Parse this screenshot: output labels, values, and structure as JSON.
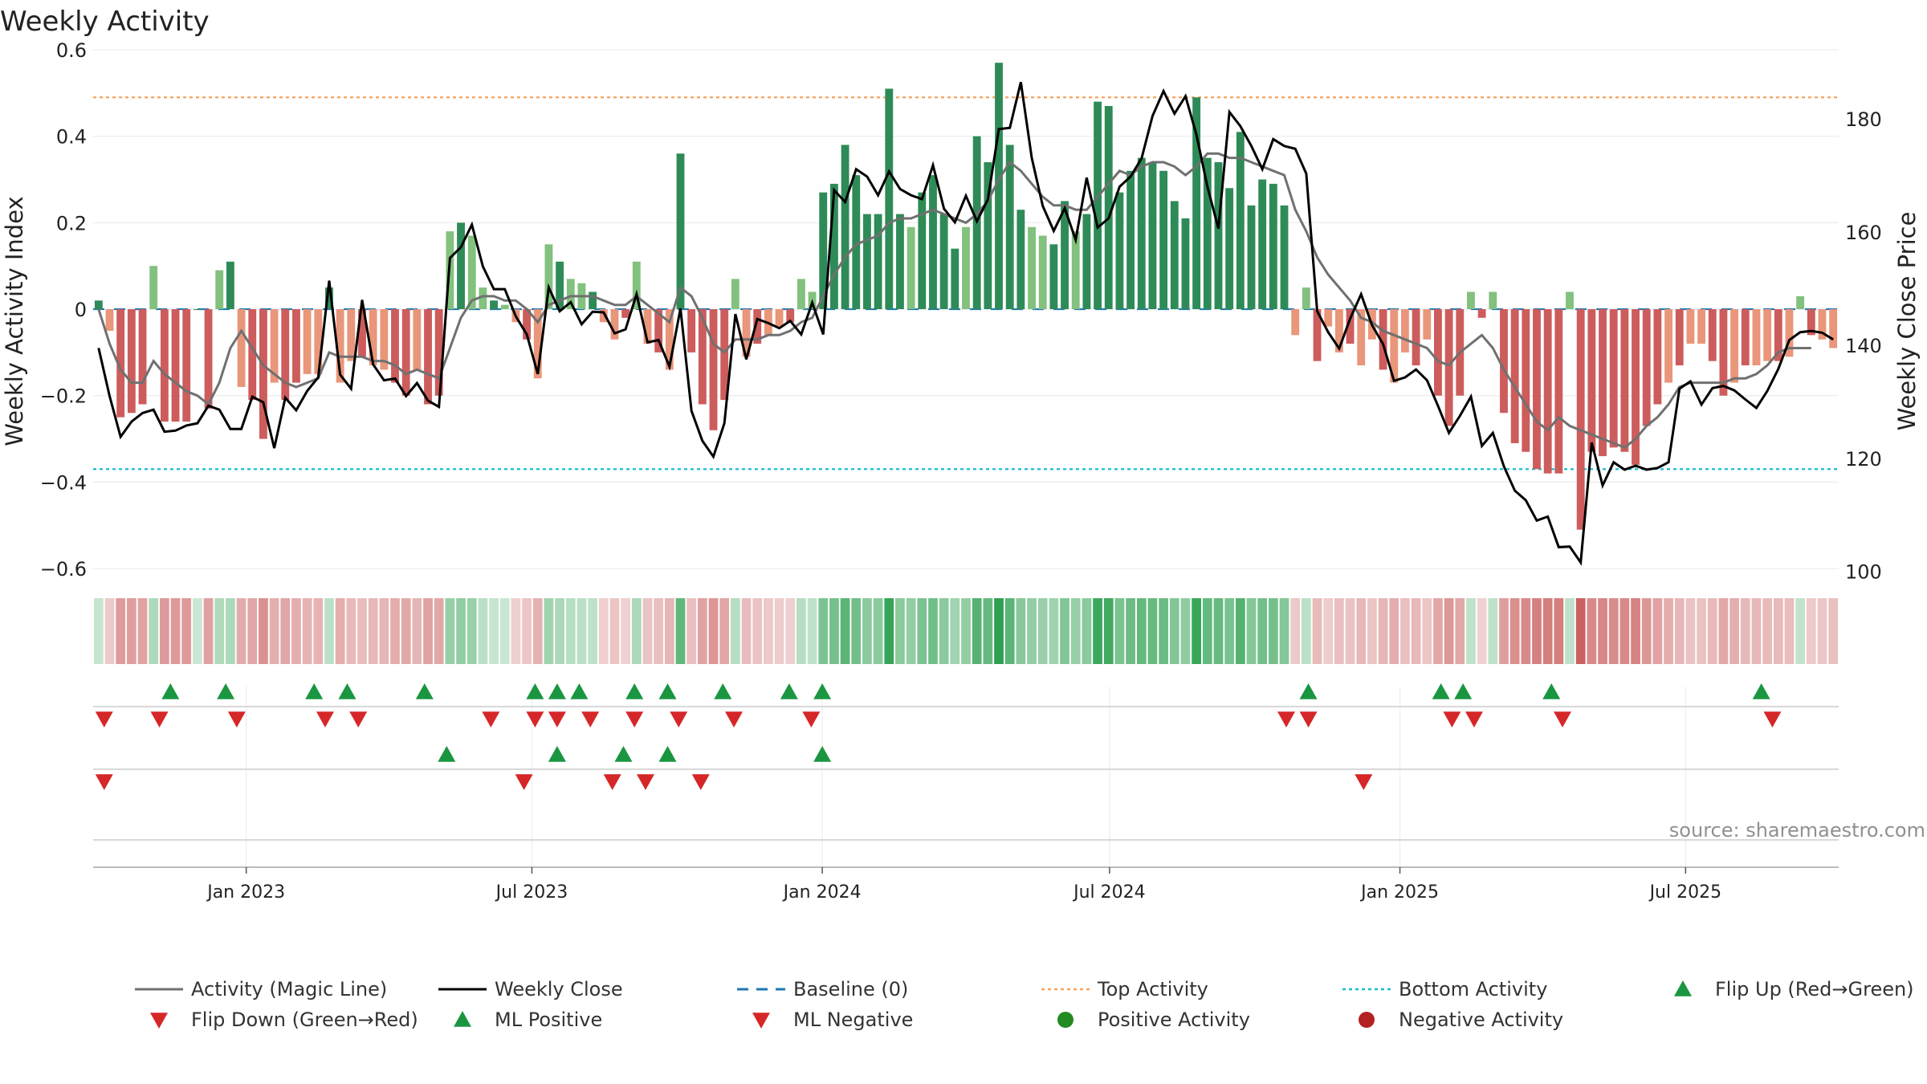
{
  "chart_data": {
    "type": "bar",
    "title": "Weekly Activity",
    "ylabel": "Weekly Activity Index",
    "y2label": "Weekly Close Price",
    "ylim": [
      -0.65,
      0.6
    ],
    "y2lim": [
      96.7,
      192.2
    ],
    "yticks": [
      0.6,
      0.4,
      0.2,
      0,
      -0.2,
      -0.4,
      -0.6
    ],
    "ytick_labels": [
      "0.6",
      "0.4",
      "0.2",
      "0",
      "−0.2",
      "−0.4",
      "−0.6"
    ],
    "y2ticks": [
      180,
      160,
      140,
      120,
      100
    ],
    "y2tick_labels": [
      "180",
      "160",
      "140",
      "120",
      "100"
    ],
    "x_start": "2022-09-26",
    "x_end": "2025-10-06",
    "xticks": [
      "2023-01-01",
      "2023-07-01",
      "2024-01-01",
      "2024-07-01",
      "2025-01-01",
      "2025-07-01"
    ],
    "xtick_labels": [
      "Jan 2023",
      "Jul 2023",
      "Jan 2024",
      "Jul 2024",
      "Jan 2025",
      "Jul 2025"
    ],
    "top_activity": 0.49,
    "bottom_activity": -0.37,
    "baseline": 0,
    "source": "source: sharemaestro.com",
    "colors": {
      "strong_pos": "#2e8b57",
      "light_pos": "#82c17e",
      "strong_neg": "#cd5c5c",
      "light_neg": "#e9967a",
      "close": "#000000",
      "magic": "#707070",
      "baseline": "#1f77b4",
      "top": "#f4a460",
      "bottom": "#17becf",
      "up_marker": "#1a9641",
      "down_marker": "#d62728",
      "pos_dot": "#228b22",
      "neg_dot": "#b22222"
    },
    "series": [
      {
        "name": "Weekly Activity Index",
        "values": [
          0.02,
          -0.05,
          -0.25,
          -0.24,
          -0.22,
          0.1,
          -0.26,
          -0.26,
          -0.26,
          0,
          -0.23,
          0.09,
          0.11,
          -0.18,
          -0.21,
          -0.3,
          -0.17,
          -0.21,
          -0.17,
          -0.15,
          -0.15,
          0.05,
          -0.17,
          -0.12,
          -0.11,
          -0.13,
          -0.14,
          -0.17,
          -0.2,
          -0.14,
          -0.22,
          -0.2,
          0.18,
          0.2,
          0.17,
          0.05,
          0.02,
          0.01,
          -0.03,
          -0.07,
          -0.16,
          0.15,
          0.11,
          0.07,
          0.06,
          0.04,
          -0.03,
          -0.07,
          -0.02,
          0.11,
          -0.08,
          -0.1,
          -0.14,
          0.36,
          -0.1,
          -0.22,
          -0.28,
          -0.21,
          0.07,
          -0.11,
          -0.08,
          -0.06,
          -0.04,
          -0.03,
          0.07,
          0.04,
          0.27,
          0.29,
          0.38,
          0.31,
          0.22,
          0.22,
          0.51,
          0.22,
          0.19,
          0.27,
          0.31,
          0.22,
          0.14,
          0.19,
          0.4,
          0.34,
          0.57,
          0.38,
          0.23,
          0.19,
          0.17,
          0.15,
          0.25,
          0.18,
          0.22,
          0.48,
          0.47,
          0.27,
          0.32,
          0.35,
          0.34,
          0.32,
          0.25,
          0.21,
          0.49,
          0.35,
          0.34,
          0.28,
          0.41,
          0.24,
          0.3,
          0.29,
          0.24,
          -0.06,
          0.05,
          -0.12,
          -0.04,
          -0.1,
          -0.08,
          -0.13,
          -0.07,
          -0.14,
          -0.17,
          -0.1,
          -0.13,
          -0.07,
          -0.2,
          -0.27,
          -0.2,
          0.04,
          -0.02,
          0.04,
          -0.24,
          -0.31,
          -0.33,
          -0.37,
          -0.38,
          -0.38,
          0.04,
          -0.51,
          -0.33,
          -0.34,
          -0.32,
          -0.33,
          -0.36,
          -0.27,
          -0.22,
          -0.17,
          -0.13,
          -0.08,
          -0.08,
          -0.12,
          -0.2,
          -0.17,
          -0.13,
          -0.13,
          -0.12,
          -0.12,
          -0.11,
          0.03,
          -0.06,
          -0.07,
          -0.09
        ]
      },
      {
        "name": "Weekly Close",
        "values": [
          139.5,
          131,
          123.8,
          126.5,
          128,
          128.6,
          124.7,
          124.9,
          125.8,
          126.2,
          129.3,
          128.6,
          125.2,
          125.2,
          130.9,
          129.9,
          121.8,
          130.7,
          128.5,
          131.9,
          134.3,
          151.4,
          134.8,
          132.3,
          148,
          136.6,
          133.8,
          134.1,
          131,
          133.3,
          130.2,
          129.1,
          155.4,
          157.3,
          161.3,
          153.9,
          149.9,
          149.9,
          145.1,
          141.9,
          134.9,
          150.2,
          146,
          147.6,
          143.7,
          145.9,
          145.8,
          142.1,
          142.8,
          149,
          140.5,
          140.9,
          136.2,
          146.5,
          128.4,
          123.1,
          120.3,
          126.2,
          145.5,
          137.5,
          144.6,
          143.9,
          143,
          144.3,
          141.9,
          147.5,
          141.9,
          167.4,
          165.3,
          171.1,
          169.8,
          166.5,
          170.7,
          167.6,
          166.5,
          165.8,
          171.8,
          164.1,
          161.7,
          166.4,
          161.9,
          165.7,
          178.2,
          178.4,
          186.5,
          173.1,
          164.6,
          160.2,
          164.2,
          158.6,
          169.6,
          160.8,
          162.4,
          168,
          169.8,
          173,
          180.5,
          184.9,
          180.9,
          184,
          177.2,
          168,
          160.6,
          181.2,
          178.7,
          175.2,
          171.1,
          176.4,
          175.2,
          174.7,
          170.3,
          146,
          142.3,
          139.4,
          144.7,
          149,
          143.5,
          140.2,
          133.7,
          134.3,
          135.7,
          133.8,
          129.3,
          124.5,
          127.5,
          130.9,
          122.2,
          124.5,
          118.6,
          114.3,
          112.6,
          109,
          109.7,
          104.3,
          104.4,
          101.6,
          122.8,
          115.2,
          119.3,
          118,
          118.7,
          118,
          118.3,
          119.3,
          132.3,
          133.6,
          129.5,
          132.4,
          132.8,
          132,
          130.4,
          128.9,
          131.9,
          135.8,
          140.9,
          142.3,
          142.5,
          142.2,
          141
        ]
      },
      {
        "name": "Activity (Magic Line)",
        "values": [
          0,
          -0.08,
          -0.14,
          -0.17,
          -0.17,
          -0.12,
          -0.15,
          -0.17,
          -0.19,
          -0.2,
          -0.22,
          -0.17,
          -0.09,
          -0.05,
          -0.09,
          -0.13,
          -0.15,
          -0.17,
          -0.18,
          -0.17,
          -0.16,
          -0.1,
          -0.11,
          -0.11,
          -0.11,
          -0.12,
          -0.12,
          -0.13,
          -0.15,
          -0.14,
          -0.15,
          -0.16,
          -0.09,
          -0.02,
          0.02,
          0.03,
          0.03,
          0.02,
          0.02,
          0,
          -0.03,
          0.01,
          0.02,
          0.03,
          0.03,
          0.03,
          0.02,
          0.01,
          0.01,
          0.03,
          0.01,
          -0.01,
          -0.03,
          0.05,
          0.03,
          -0.02,
          -0.08,
          -0.1,
          -0.07,
          -0.07,
          -0.07,
          -0.06,
          -0.06,
          -0.05,
          -0.03,
          -0.02,
          0.03,
          0.08,
          0.12,
          0.15,
          0.16,
          0.17,
          0.2,
          0.21,
          0.21,
          0.22,
          0.23,
          0.22,
          0.21,
          0.2,
          0.22,
          0.25,
          0.3,
          0.34,
          0.32,
          0.29,
          0.26,
          0.24,
          0.24,
          0.23,
          0.23,
          0.26,
          0.29,
          0.32,
          0.31,
          0.33,
          0.34,
          0.34,
          0.33,
          0.31,
          0.33,
          0.36,
          0.36,
          0.35,
          0.35,
          0.34,
          0.33,
          0.32,
          0.31,
          0.23,
          0.18,
          0.12,
          0.08,
          0.05,
          0.02,
          -0.02,
          -0.03,
          -0.05,
          -0.06,
          -0.07,
          -0.08,
          -0.09,
          -0.12,
          -0.13,
          -0.1,
          -0.08,
          -0.06,
          -0.09,
          -0.14,
          -0.18,
          -0.22,
          -0.26,
          -0.28,
          -0.25,
          -0.27,
          -0.28,
          -0.29,
          -0.3,
          -0.31,
          -0.32,
          -0.3,
          -0.27,
          -0.25,
          -0.22,
          -0.18,
          -0.17,
          -0.17,
          -0.17,
          -0.17,
          -0.16,
          -0.16,
          -0.15,
          -0.13,
          -0.1,
          -0.09,
          -0.09,
          -0.09
        ]
      }
    ],
    "strip_values": [
      0.02,
      -0.05,
      -0.25,
      -0.24,
      -0.22,
      0.1,
      -0.26,
      -0.26,
      -0.26,
      0,
      -0.23,
      0.09,
      0.11,
      -0.18,
      -0.21,
      -0.3,
      -0.17,
      -0.21,
      -0.17,
      -0.15,
      -0.15,
      0.05,
      -0.17,
      -0.12,
      -0.11,
      -0.13,
      -0.14,
      -0.17,
      -0.2,
      -0.14,
      -0.22,
      -0.2,
      0.18,
      0.2,
      0.17,
      0.05,
      0.02,
      0.01,
      -0.03,
      -0.07,
      -0.16,
      0.15,
      0.11,
      0.07,
      0.06,
      0.04,
      -0.03,
      -0.07,
      -0.02,
      0.11,
      -0.08,
      -0.1,
      -0.14,
      0.36,
      -0.1,
      -0.22,
      -0.28,
      -0.21,
      0.07,
      -0.11,
      -0.08,
      -0.06,
      -0.04,
      -0.03,
      0.07,
      0.04,
      0.27,
      0.29,
      0.38,
      0.31,
      0.22,
      0.22,
      0.51,
      0.22,
      0.19,
      0.27,
      0.31,
      0.22,
      0.14,
      0.19,
      0.4,
      0.34,
      0.57,
      0.38,
      0.23,
      0.19,
      0.17,
      0.15,
      0.25,
      0.18,
      0.22,
      0.48,
      0.47,
      0.27,
      0.32,
      0.35,
      0.34,
      0.32,
      0.25,
      0.21,
      0.49,
      0.35,
      0.34,
      0.28,
      0.41,
      0.24,
      0.3,
      0.29,
      0.24,
      -0.06,
      0.05,
      -0.12,
      -0.04,
      -0.1,
      -0.08,
      -0.13,
      -0.07,
      -0.14,
      -0.17,
      -0.1,
      -0.13,
      -0.07,
      -0.2,
      -0.27,
      -0.2,
      0.04,
      -0.02,
      0.04,
      -0.24,
      -0.31,
      -0.33,
      -0.37,
      -0.38,
      -0.38,
      0.04,
      -0.51,
      -0.33,
      -0.34,
      -0.32,
      -0.33,
      -0.36,
      -0.27,
      -0.22,
      -0.17,
      -0.13,
      -0.08,
      -0.08,
      -0.12,
      -0.2,
      -0.17,
      -0.13,
      -0.13,
      -0.12,
      -0.12,
      -0.11,
      0.03,
      -0.06,
      -0.07,
      -0.09
    ],
    "flip_up_dates": [
      "2022-11-14",
      "2022-12-19",
      "2023-02-13",
      "2023-03-06",
      "2023-04-24",
      "2023-07-03",
      "2023-07-17",
      "2023-07-31",
      "2023-09-04",
      "2023-09-25",
      "2023-10-30",
      "2023-12-11",
      "2024-01-01",
      "2024-11-04",
      "2025-01-27",
      "2025-02-10",
      "2025-04-07",
      "2025-08-18"
    ],
    "flip_down_dates": [
      "2022-10-03",
      "2022-11-07",
      "2022-12-26",
      "2023-02-20",
      "2023-03-13",
      "2023-06-05",
      "2023-07-03",
      "2023-07-17",
      "2023-08-07",
      "2023-09-04",
      "2023-10-02",
      "2023-11-06",
      "2023-12-25",
      "2024-10-21",
      "2024-11-04",
      "2025-02-03",
      "2025-02-17",
      "2025-04-14",
      "2025-08-25"
    ],
    "ml_positive_dates": [
      "2023-05-08",
      "2023-07-17",
      "2023-08-28",
      "2023-09-25",
      "2024-01-01"
    ],
    "ml_negative_dates": [
      "2022-10-03",
      "2023-06-26",
      "2023-08-21",
      "2023-09-11",
      "2023-10-16",
      "2024-12-09"
    ],
    "legend": [
      {
        "label": "Activity (Magic Line)",
        "kind": "line",
        "color": "#707070"
      },
      {
        "label": "Weekly Close",
        "kind": "line",
        "color": "#000000"
      },
      {
        "label": "Baseline (0)",
        "kind": "dash",
        "color": "#1f77b4"
      },
      {
        "label": "Top Activity",
        "kind": "dot-line",
        "color": "#f4a460"
      },
      {
        "label": "Bottom Activity",
        "kind": "dot-line",
        "color": "#17becf"
      },
      {
        "label": "Flip Up (Red→Green)",
        "kind": "tri-up",
        "color": "#1a9641"
      },
      {
        "label": "Flip Down (Green→Red)",
        "kind": "tri-down",
        "color": "#d62728"
      },
      {
        "label": "ML Positive",
        "kind": "tri-up",
        "color": "#1a9641"
      },
      {
        "label": "ML Negative",
        "kind": "tri-down",
        "color": "#d62728"
      },
      {
        "label": "Positive Activity",
        "kind": "circle",
        "color": "#228b22"
      },
      {
        "label": "Negative Activity",
        "kind": "circle",
        "color": "#b22222"
      }
    ]
  }
}
